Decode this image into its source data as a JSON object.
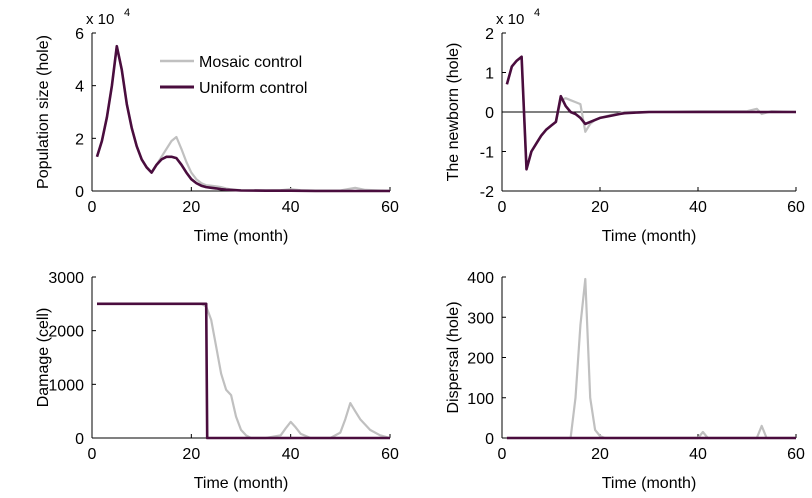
{
  "chart_data": [
    {
      "type": "line",
      "title": "",
      "xlabel": "Time (month)",
      "ylabel": "Population size (hole)",
      "y_scale_label": "x 10",
      "y_scale_exp": "4",
      "xlim": [
        0,
        60
      ],
      "ylim": [
        0,
        6
      ],
      "xticks": [
        0,
        20,
        40,
        60
      ],
      "yticks": [
        0,
        2,
        4,
        6
      ],
      "zero_line": false,
      "legend": "top-center",
      "series": [
        {
          "name": "Mosaic control",
          "color": "#c0c0c0",
          "x": [
            1,
            2,
            3,
            4,
            5,
            6,
            7,
            8,
            9,
            10,
            11,
            12,
            13,
            14,
            15,
            16,
            17,
            18,
            19,
            20,
            21,
            22,
            23,
            24,
            25,
            26,
            27,
            28,
            30,
            35,
            38,
            40,
            42,
            45,
            50,
            53,
            55,
            58,
            60
          ],
          "y": [
            1.3,
            1.9,
            2.8,
            4.0,
            5.5,
            4.6,
            3.3,
            2.4,
            1.7,
            1.2,
            0.9,
            0.7,
            1.0,
            1.3,
            1.6,
            1.9,
            2.05,
            1.6,
            1.1,
            0.7,
            0.45,
            0.3,
            0.22,
            0.2,
            0.18,
            0.15,
            0.1,
            0.06,
            0.03,
            0.02,
            0.03,
            0.07,
            0.03,
            0.02,
            0.02,
            0.12,
            0.04,
            0.02,
            0.01
          ]
        },
        {
          "name": "Uniform control",
          "color": "#4a0d3e",
          "x": [
            1,
            2,
            3,
            4,
            5,
            6,
            7,
            8,
            9,
            10,
            11,
            12,
            13,
            14,
            15,
            16,
            17,
            18,
            19,
            20,
            21,
            22,
            23,
            24,
            25,
            26,
            27,
            28,
            30,
            35,
            40,
            45,
            50,
            55,
            60
          ],
          "y": [
            1.3,
            1.9,
            2.8,
            4.0,
            5.5,
            4.6,
            3.3,
            2.4,
            1.7,
            1.2,
            0.9,
            0.7,
            1.0,
            1.2,
            1.3,
            1.3,
            1.25,
            1.0,
            0.7,
            0.45,
            0.3,
            0.2,
            0.15,
            0.12,
            0.1,
            0.07,
            0.05,
            0.04,
            0.02,
            0.01,
            0.01,
            0.0,
            0.0,
            0.0,
            0.0
          ]
        }
      ]
    },
    {
      "type": "line",
      "title": "",
      "xlabel": "Time (month)",
      "ylabel": "The newborn (hole)",
      "y_scale_label": "x 10",
      "y_scale_exp": "4",
      "xlim": [
        0,
        60
      ],
      "ylim": [
        -2,
        2
      ],
      "xticks": [
        0,
        20,
        40,
        60
      ],
      "yticks": [
        -2,
        -1,
        0,
        1,
        2
      ],
      "zero_line": true,
      "series": [
        {
          "name": "Mosaic control",
          "color": "#c0c0c0",
          "x": [
            1,
            2,
            3,
            4,
            5,
            6,
            7,
            8,
            9,
            10,
            11,
            12,
            13,
            14,
            15,
            16,
            17,
            18,
            19,
            20,
            22,
            24,
            25,
            28,
            30,
            40,
            50,
            52,
            53,
            55,
            60
          ],
          "y": [
            0.7,
            1.15,
            1.3,
            1.4,
            -1.45,
            -1.0,
            -0.8,
            -0.6,
            -0.45,
            -0.35,
            -0.25,
            0.3,
            0.35,
            0.3,
            0.25,
            0.2,
            -0.5,
            -0.3,
            -0.2,
            -0.15,
            -0.08,
            -0.03,
            0.0,
            0.0,
            0.0,
            0.02,
            0.02,
            0.08,
            -0.05,
            0.02,
            0.0
          ]
        },
        {
          "name": "Uniform control",
          "color": "#4a0d3e",
          "x": [
            1,
            2,
            3,
            4,
            5,
            6,
            7,
            8,
            9,
            10,
            11,
            12,
            13,
            14,
            15,
            16,
            17,
            18,
            19,
            20,
            22,
            24,
            25,
            28,
            30,
            40,
            50,
            60
          ],
          "y": [
            0.7,
            1.15,
            1.3,
            1.4,
            -1.45,
            -1.0,
            -0.8,
            -0.6,
            -0.45,
            -0.35,
            -0.25,
            0.4,
            0.15,
            0.0,
            -0.05,
            -0.15,
            -0.3,
            -0.25,
            -0.2,
            -0.15,
            -0.1,
            -0.05,
            -0.03,
            -0.01,
            0.0,
            0.0,
            0.0,
            0.0
          ]
        }
      ]
    },
    {
      "type": "line",
      "title": "",
      "xlabel": "Time (month)",
      "ylabel": "Damage (cell)",
      "y_scale_label": "",
      "y_scale_exp": "",
      "xlim": [
        0,
        60
      ],
      "ylim": [
        0,
        3000
      ],
      "xticks": [
        0,
        20,
        40,
        60
      ],
      "yticks": [
        0,
        1000,
        2000,
        3000
      ],
      "zero_line": false,
      "series": [
        {
          "name": "Mosaic control",
          "color": "#c0c0c0",
          "x": [
            1,
            22,
            23,
            24,
            25,
            26,
            27,
            28,
            29,
            30,
            31,
            32,
            35,
            38,
            39,
            40,
            41,
            42,
            44,
            46,
            48,
            50,
            51,
            52,
            53,
            54,
            56,
            58,
            60
          ],
          "y": [
            2500,
            2500,
            2450,
            2200,
            1700,
            1200,
            900,
            800,
            400,
            150,
            50,
            0,
            0,
            50,
            180,
            300,
            200,
            80,
            0,
            0,
            0,
            100,
            350,
            650,
            500,
            350,
            150,
            50,
            0
          ]
        },
        {
          "name": "Uniform control",
          "color": "#4a0d3e",
          "x": [
            1,
            22,
            23,
            23.2,
            60
          ],
          "y": [
            2500,
            2500,
            2500,
            0,
            0
          ]
        }
      ]
    },
    {
      "type": "line",
      "title": "",
      "xlabel": "Time (month)",
      "ylabel": "Dispersal (hole)",
      "y_scale_label": "",
      "y_scale_exp": "",
      "xlim": [
        0,
        60
      ],
      "ylim": [
        0,
        400
      ],
      "xticks": [
        0,
        20,
        40,
        60
      ],
      "yticks": [
        0,
        100,
        200,
        300,
        400
      ],
      "zero_line": false,
      "series": [
        {
          "name": "Mosaic control",
          "color": "#c0c0c0",
          "x": [
            1,
            14,
            15,
            16,
            17,
            18,
            19,
            20,
            21,
            40,
            41,
            42,
            52,
            53,
            54,
            60
          ],
          "y": [
            0,
            0,
            100,
            280,
            395,
            100,
            20,
            5,
            0,
            0,
            15,
            0,
            0,
            30,
            0,
            0
          ]
        },
        {
          "name": "Uniform control",
          "color": "#4a0d3e",
          "x": [
            1,
            60
          ],
          "y": [
            0,
            0
          ]
        }
      ]
    }
  ]
}
